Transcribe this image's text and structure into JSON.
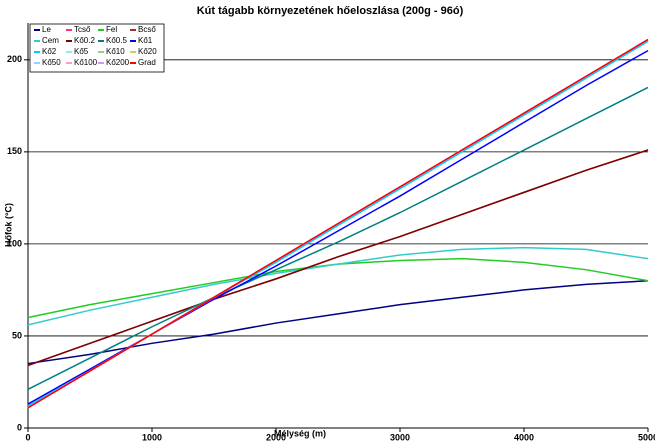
{
  "chart_data": {
    "type": "line",
    "title": "Kút tágabb környezetének  hőeloszlása (200g - 96ó)",
    "x_label": "Mélység (m)",
    "y_label": "Hőfok (°C)",
    "x": [
      0,
      500,
      1000,
      1500,
      2000,
      2500,
      3000,
      3500,
      4000,
      4500,
      5000
    ],
    "xlim": [
      0,
      5000
    ],
    "xticks": [
      0,
      1000,
      2000,
      3000,
      4000,
      5000
    ],
    "ylim": [
      0,
      220
    ],
    "yticks": [
      0,
      50,
      100,
      150,
      200
    ],
    "grid": true,
    "legend": "upper left",
    "series": [
      {
        "name": "Le",
        "color": "#000080",
        "values": [
          35,
          40,
          46,
          51,
          57,
          62,
          67,
          71,
          75,
          78,
          80
        ]
      },
      {
        "name": "Tcső",
        "color": "#ff3366",
        "values": [
          11,
          31,
          51,
          71,
          91,
          111,
          131,
          151,
          171,
          191,
          211
        ]
      },
      {
        "name": "Fel",
        "color": "#22cc22",
        "values": [
          60,
          67,
          73,
          79,
          85,
          89,
          91,
          92,
          90,
          86,
          80
        ]
      },
      {
        "name": "Bcső",
        "color": "#993333",
        "values": [
          34,
          46,
          58,
          70,
          81,
          93,
          104,
          116,
          128,
          140,
          151
        ]
      },
      {
        "name": "Cem",
        "color": "#33cccc",
        "values": [
          56,
          64,
          71,
          78,
          84,
          89,
          94,
          97,
          98,
          97,
          92
        ]
      },
      {
        "name": "Kő0.2",
        "color": "#800000",
        "values": [
          34,
          46,
          58,
          70,
          81,
          93,
          104,
          116,
          128,
          140,
          151
        ]
      },
      {
        "name": "Kő0.5",
        "color": "#008080",
        "values": [
          21,
          38,
          55,
          71,
          86,
          101,
          117,
          134,
          151,
          168,
          185
        ]
      },
      {
        "name": "Kő1",
        "color": "#0000ff",
        "values": [
          13,
          32,
          51,
          70,
          88,
          107,
          126,
          146,
          166,
          186,
          205
        ]
      },
      {
        "name": "Kő2",
        "color": "#00ccff",
        "values": [
          12,
          31,
          51,
          71,
          90,
          110,
          130,
          150,
          170,
          190,
          210
        ]
      },
      {
        "name": "Kő5",
        "color": "#99e6e6",
        "values": [
          11,
          31,
          51,
          71,
          91,
          111,
          131,
          151,
          171,
          191,
          211
        ]
      },
      {
        "name": "Kő10",
        "color": "#99cc99",
        "values": [
          11,
          31,
          51,
          71,
          91,
          111,
          131,
          151,
          171,
          191,
          211
        ]
      },
      {
        "name": "Kő20",
        "color": "#cccc66",
        "values": [
          11,
          31,
          51,
          71,
          91,
          111,
          131,
          151,
          171,
          191,
          211
        ]
      },
      {
        "name": "Kő50",
        "color": "#99ccff",
        "values": [
          11,
          31,
          51,
          71,
          91,
          111,
          131,
          151,
          171,
          191,
          211
        ]
      },
      {
        "name": "Kő100",
        "color": "#ff99cc",
        "values": [
          11,
          31,
          51,
          71,
          91,
          111,
          131,
          151,
          171,
          191,
          211
        ]
      },
      {
        "name": "Kő200",
        "color": "#cc99ff",
        "values": [
          11,
          31,
          51,
          71,
          91,
          111,
          131,
          151,
          171,
          191,
          211
        ]
      },
      {
        "name": "Grad",
        "color": "#ff0000",
        "values": [
          11,
          31,
          51,
          71,
          91,
          111,
          131,
          151,
          171,
          191,
          211
        ]
      }
    ]
  }
}
